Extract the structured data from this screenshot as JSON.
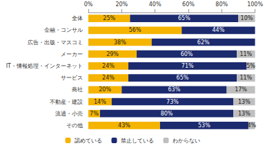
{
  "chart_data": {
    "type": "bar",
    "orientation": "horizontal",
    "stacked": true,
    "data_labels": true,
    "grid": false,
    "legend": "bottom",
    "categories": [
      "全体",
      "金融・コンサル",
      "広告・出版・マスコミ",
      "メーカー",
      "IT・情報処理・インターネット",
      "サービス",
      "商社",
      "不動産・建設",
      "流通・小売",
      "その他"
    ],
    "xlim": [
      0,
      100
    ],
    "xticks": [
      {
        "value": 0,
        "label": "0%"
      },
      {
        "value": 20,
        "label": "20%"
      },
      {
        "value": 40,
        "label": "40%"
      },
      {
        "value": 60,
        "label": "60%"
      },
      {
        "value": 80,
        "label": "80%"
      },
      {
        "value": 100,
        "label": "100%"
      }
    ],
    "series": [
      {
        "name": "認めている",
        "color": "#f5b400",
        "values": [
          25,
          56,
          38,
          29,
          24,
          24,
          20,
          14,
          7,
          43
        ],
        "value_labels": [
          "25%",
          "56%",
          "38%",
          "29%",
          "24%",
          "24%",
          "20%",
          "14%",
          "7%",
          "43%"
        ]
      },
      {
        "name": "禁止している",
        "color": "#1c2a6e",
        "values": [
          65,
          44,
          62,
          60,
          71,
          65,
          63,
          73,
          80,
          53
        ],
        "value_labels": [
          "65%",
          "44%",
          "62%",
          "60%",
          "71%",
          "65%",
          "63%",
          "73%",
          "80%",
          "53%"
        ]
      },
      {
        "name": "わからない",
        "color": "#bfbfbf",
        "values": [
          10,
          null,
          null,
          11,
          5,
          11,
          17,
          13,
          13,
          4
        ],
        "value_labels": [
          "10%",
          null,
          null,
          "11%",
          "5%",
          "11%",
          "17%",
          "13%",
          "13%",
          "4%"
        ]
      }
    ]
  }
}
